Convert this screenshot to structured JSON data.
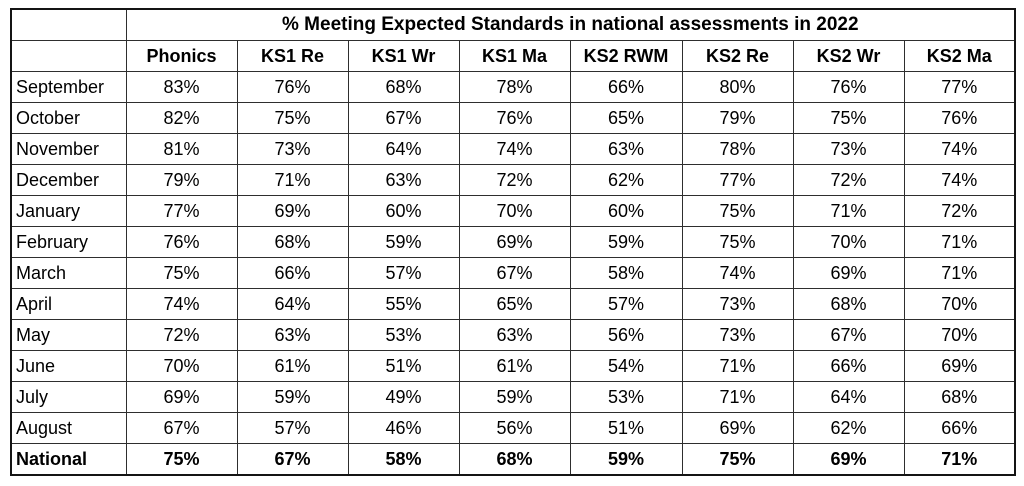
{
  "chart_data": {
    "type": "table",
    "title": "% Meeting Expected Standards in national assessments in 2022",
    "columns": [
      "Phonics",
      "KS1 Re",
      "KS1 Wr",
      "KS1 Ma",
      "KS2 RWM",
      "KS2 Re",
      "KS2 Wr",
      "KS2 Ma"
    ],
    "row_labels": [
      "September",
      "October",
      "November",
      "December",
      "January",
      "February",
      "March",
      "April",
      "May",
      "June",
      "July",
      "August",
      "National"
    ],
    "values_percent": [
      [
        83,
        76,
        68,
        78,
        66,
        80,
        76,
        77
      ],
      [
        82,
        75,
        67,
        76,
        65,
        79,
        75,
        76
      ],
      [
        81,
        73,
        64,
        74,
        63,
        78,
        73,
        74
      ],
      [
        79,
        71,
        63,
        72,
        62,
        77,
        72,
        74
      ],
      [
        77,
        69,
        60,
        70,
        60,
        75,
        71,
        72
      ],
      [
        76,
        68,
        59,
        69,
        59,
        75,
        70,
        71
      ],
      [
        75,
        66,
        57,
        67,
        58,
        74,
        69,
        71
      ],
      [
        74,
        64,
        55,
        65,
        57,
        73,
        68,
        70
      ],
      [
        72,
        63,
        53,
        63,
        56,
        73,
        67,
        70
      ],
      [
        70,
        61,
        51,
        61,
        54,
        71,
        66,
        69
      ],
      [
        69,
        59,
        49,
        59,
        53,
        71,
        64,
        68
      ],
      [
        67,
        57,
        46,
        56,
        51,
        69,
        62,
        66
      ],
      [
        75,
        67,
        58,
        68,
        59,
        75,
        69,
        71
      ]
    ],
    "unit": "%",
    "bold_rows": [
      "National"
    ],
    "layout": {
      "border_color": "#2e2e2e",
      "outer_border_color": "#141414",
      "background": "#ffffff",
      "grid": "on"
    }
  }
}
